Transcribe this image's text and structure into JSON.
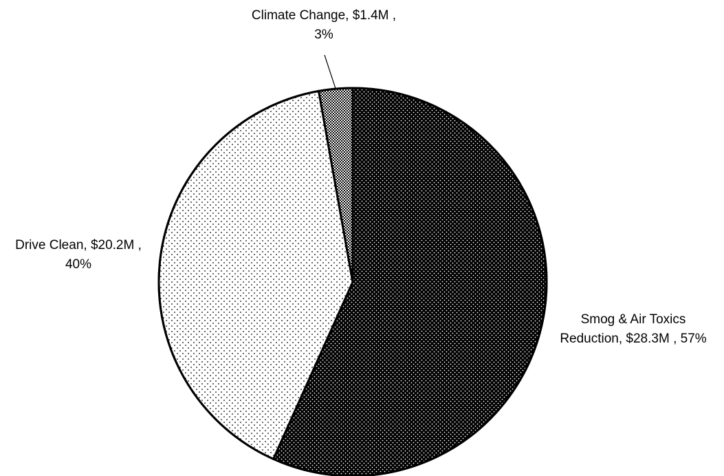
{
  "chart_data": {
    "type": "pie",
    "title": "",
    "slices": [
      {
        "label": "Smog & Air Toxics Reduction",
        "value": 28.3,
        "amount_text": "$28.3M",
        "percent": 57,
        "label_lines": [
          "Smog & Air Toxics",
          "Reduction,  $28.3M , 57%"
        ],
        "pattern": "dark-dots"
      },
      {
        "label": "Drive Clean",
        "value": 20.2,
        "amount_text": "$20.2M",
        "percent": 40,
        "label_lines": [
          "Drive Clean,  $20.2M ,",
          "40%"
        ],
        "pattern": "light-dots"
      },
      {
        "label": "Climate Change",
        "value": 1.4,
        "amount_text": "$1.4M",
        "percent": 3,
        "label_lines": [
          "Climate Change,  $1.4M ,",
          "3%"
        ],
        "pattern": "checker"
      }
    ],
    "legend": "none",
    "colors": {
      "dark": "#000000",
      "light": "#ffffff",
      "outline": "#000000"
    }
  }
}
